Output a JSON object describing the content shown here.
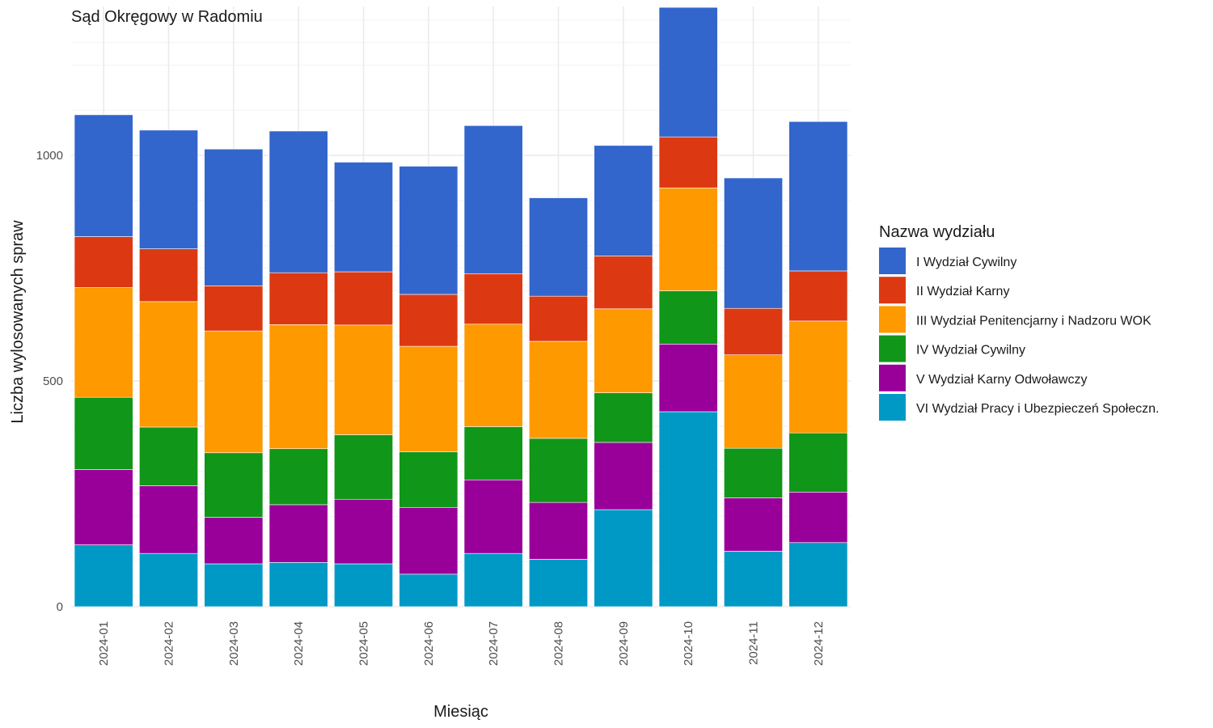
{
  "chart_data": {
    "type": "bar",
    "stacked": true,
    "title": "Sąd Okręgowy w Radomiu",
    "xlabel": "Miesiąc",
    "ylabel": "Liczba wylosowanych spraw",
    "categories": [
      "2024-01",
      "2024-02",
      "2024-03",
      "2024-04",
      "2024-05",
      "2024-06",
      "2024-07",
      "2024-08",
      "2024-09",
      "2024-10",
      "2024-11",
      "2024-12"
    ],
    "ylim": [
      0,
      1330
    ],
    "yticks": [
      0,
      500,
      1000
    ],
    "grid": true,
    "legend": {
      "title": "Nazwa wydziału",
      "position": "right"
    },
    "series": [
      {
        "name": "VI Wydział Pracy i Ubezpieczeń Społeczn.",
        "color": "#0099C6",
        "values": [
          137,
          118,
          95,
          98,
          95,
          72,
          118,
          105,
          215,
          432,
          123,
          142
        ]
      },
      {
        "name": "V Wydział Karny Odwoławczy",
        "color": "#990099",
        "values": [
          167,
          150,
          103,
          128,
          143,
          148,
          163,
          126,
          149,
          150,
          118,
          112
        ]
      },
      {
        "name": "IV Wydział Cywilny",
        "color": "#109618",
        "values": [
          160,
          130,
          143,
          124,
          143,
          123,
          118,
          142,
          110,
          118,
          110,
          131
        ]
      },
      {
        "name": "III Wydział Penitencjarny i Nadzoru WOK",
        "color": "#FF9900",
        "values": [
          243,
          278,
          270,
          275,
          243,
          234,
          227,
          215,
          186,
          228,
          207,
          248
        ]
      },
      {
        "name": "II Wydział Karny",
        "color": "#DC3912",
        "values": [
          113,
          117,
          100,
          115,
          118,
          115,
          112,
          100,
          117,
          113,
          103,
          111
        ]
      },
      {
        "name": "I Wydział Cywilny",
        "color": "#3366CC",
        "values": [
          270,
          263,
          303,
          314,
          243,
          284,
          328,
          218,
          245,
          287,
          289,
          331
        ]
      }
    ]
  }
}
